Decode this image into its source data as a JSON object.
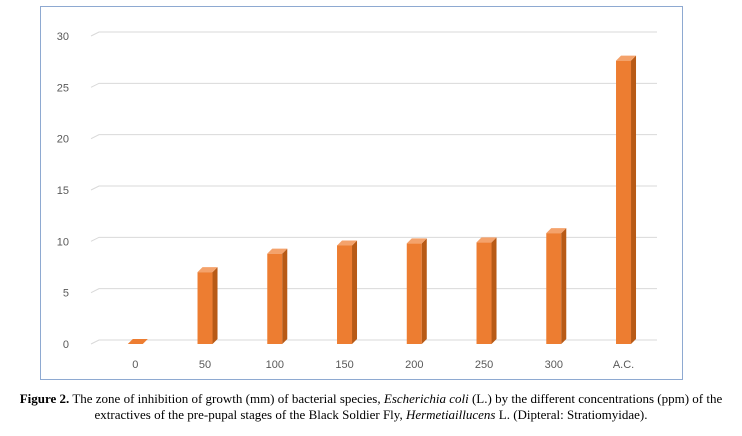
{
  "chart_data": {
    "type": "bar",
    "title": "",
    "xlabel": "",
    "ylabel": "",
    "categories": [
      "0",
      "50",
      "100",
      "150",
      "200",
      "250",
      "300",
      "A.C."
    ],
    "values": [
      0,
      7,
      8.8,
      9.6,
      9.8,
      9.9,
      10.8,
      27.6
    ],
    "ylim": [
      0,
      30
    ],
    "yticks": [
      "0",
      "5",
      "10",
      "15",
      "20",
      "25",
      "30"
    ],
    "grid": true,
    "legend": "none",
    "colors": {
      "bar_front": "#ed7d31",
      "bar_side": "#b85a16",
      "bar_top": "#f4a26b",
      "grid": "#d9d9d9",
      "frame": "#8ea9d1"
    }
  },
  "caption": {
    "label": "Figure 2.",
    "text1": " The zone of inhibition of growth (mm) of bacterial species, ",
    "species1": "Escherichia coli",
    "text2": " (L.) by the different concentrations (ppm) of the extractives of the pre-pupal stages of the Black Soldier Fly, ",
    "species2": "Hermetiaillucens",
    "text3": " L. (Dipteral: Stratiomyidae)."
  }
}
